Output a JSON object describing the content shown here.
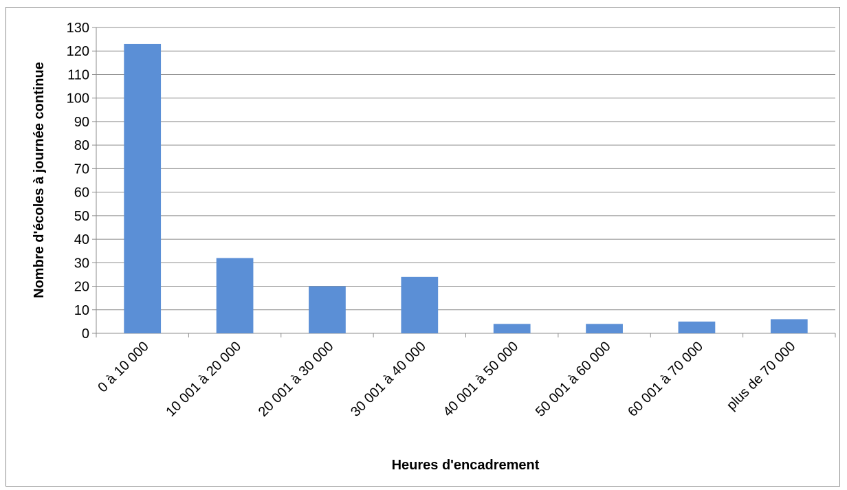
{
  "chart_data": {
    "type": "bar",
    "title": "",
    "xlabel": "Heures d'encadrement",
    "ylabel": "Nombre d'écoles à journée continue",
    "categories": [
      "0 à 10 000",
      "10 001 à 20 000",
      "20 001 à 30 000",
      "30 001 à 40 000",
      "40 001 à 50 000",
      "50 001 à 60 000",
      "60 001 à 70 000",
      "plus de 70 000"
    ],
    "values": [
      123,
      32,
      20,
      24,
      4,
      4,
      5,
      6
    ],
    "ylim": [
      0,
      130
    ],
    "yticks": [
      0,
      10,
      20,
      30,
      40,
      50,
      60,
      70,
      80,
      90,
      100,
      110,
      120,
      130
    ],
    "grid": true,
    "legend": "none",
    "bar_color": "#5b8fd6",
    "gridline_color": "#8c8c8c"
  }
}
